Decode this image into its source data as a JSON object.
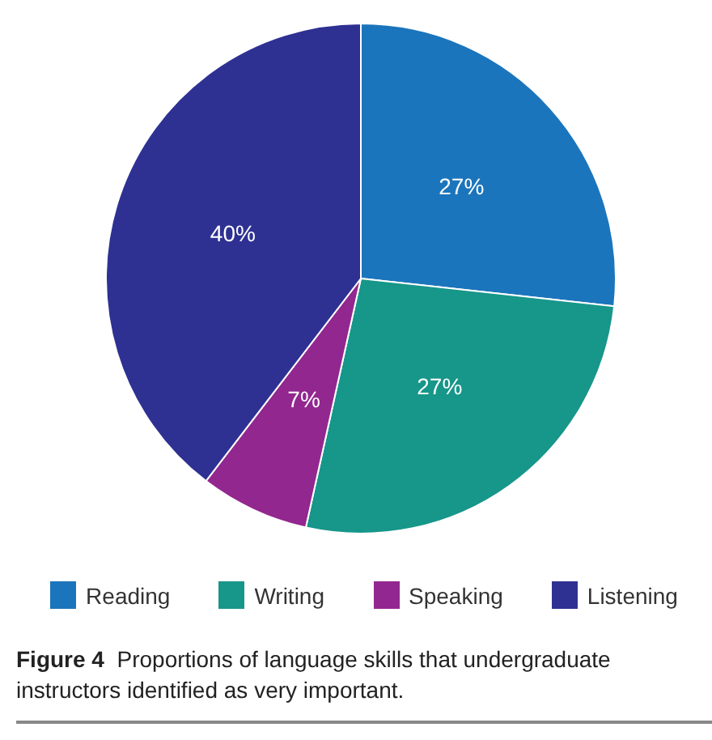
{
  "chart_data": {
    "type": "pie",
    "title": "Figure 4  Proportions of language skills that undergraduate instructors identified as very important.",
    "categories": [
      "Reading",
      "Writing",
      "Speaking",
      "Listening"
    ],
    "values": [
      27,
      27,
      7,
      40
    ],
    "colors": [
      "#1b75bc",
      "#17968a",
      "#92278f",
      "#2e3192"
    ],
    "value_labels": [
      "27%",
      "27%",
      "7%",
      "40%"
    ],
    "legend": "bottom"
  }
}
